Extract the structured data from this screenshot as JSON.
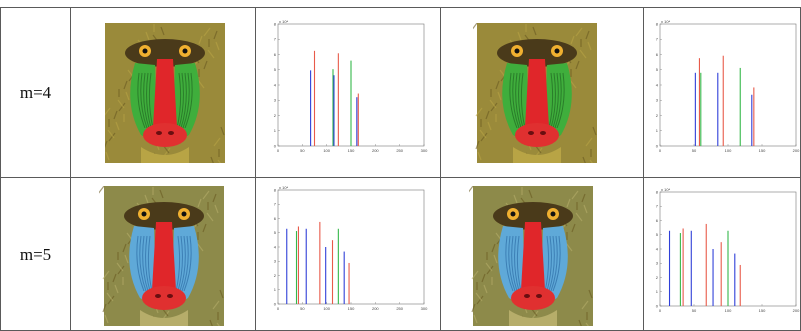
{
  "rows": [
    {
      "label": "m=4",
      "baboon_variant_a": "green",
      "baboon_variant_b": "green",
      "hist_a": {
        "xticks": [
          "0",
          "50",
          "100",
          "150",
          "200",
          "250",
          "300"
        ],
        "exponent": "x 10⁴",
        "bars": [
          {
            "x": 67,
            "h": 0.62,
            "color": "#2f3fd8"
          },
          {
            "x": 75,
            "h": 0.78,
            "color": "#e85a4a"
          },
          {
            "x": 113,
            "h": 0.63,
            "color": "#36b84a"
          },
          {
            "x": 115,
            "h": 0.58,
            "color": "#2f3fd8"
          },
          {
            "x": 124,
            "h": 0.76,
            "color": "#e85a4a"
          },
          {
            "x": 150,
            "h": 0.7,
            "color": "#36b84a"
          },
          {
            "x": 162,
            "h": 0.4,
            "color": "#2f3fd8"
          },
          {
            "x": 165,
            "h": 0.43,
            "color": "#e85a4a"
          }
        ]
      },
      "hist_b": {
        "xticks": [
          "0",
          "50",
          "100",
          "150",
          "200"
        ],
        "exponent": "x 10⁴",
        "bars": [
          {
            "x": 52,
            "h": 0.6,
            "color": "#2f3fd8"
          },
          {
            "x": 58,
            "h": 0.72,
            "color": "#e85a4a"
          },
          {
            "x": 60,
            "h": 0.6,
            "color": "#36b84a"
          },
          {
            "x": 85,
            "h": 0.6,
            "color": "#2f3fd8"
          },
          {
            "x": 93,
            "h": 0.74,
            "color": "#e85a4a"
          },
          {
            "x": 118,
            "h": 0.64,
            "color": "#36b84a"
          },
          {
            "x": 135,
            "h": 0.42,
            "color": "#2f3fd8"
          },
          {
            "x": 138,
            "h": 0.48,
            "color": "#e85a4a"
          }
        ]
      }
    },
    {
      "label": "m=5",
      "baboon_variant_a": "blue",
      "baboon_variant_b": "blue",
      "hist_a": {
        "xticks": [
          "0",
          "50",
          "100",
          "150",
          "200",
          "250",
          "300"
        ],
        "exponent": "x 10⁴",
        "bars": [
          {
            "x": 18,
            "h": 0.66,
            "color": "#2f3fd8"
          },
          {
            "x": 38,
            "h": 0.64,
            "color": "#36b84a"
          },
          {
            "x": 42,
            "h": 0.68,
            "color": "#e85a4a"
          },
          {
            "x": 58,
            "h": 0.66,
            "color": "#2f3fd8"
          },
          {
            "x": 86,
            "h": 0.72,
            "color": "#e85a4a"
          },
          {
            "x": 98,
            "h": 0.5,
            "color": "#2f3fd8"
          },
          {
            "x": 112,
            "h": 0.56,
            "color": "#e85a4a"
          },
          {
            "x": 124,
            "h": 0.66,
            "color": "#36b84a"
          },
          {
            "x": 136,
            "h": 0.46,
            "color": "#2f3fd8"
          },
          {
            "x": 146,
            "h": 0.36,
            "color": "#e85a4a"
          }
        ]
      },
      "hist_b": {
        "xticks": [
          "0",
          "50",
          "100",
          "150",
          "200"
        ],
        "exponent": "x 10⁴",
        "bars": [
          {
            "x": 14,
            "h": 0.66,
            "color": "#2f3fd8"
          },
          {
            "x": 30,
            "h": 0.64,
            "color": "#36b84a"
          },
          {
            "x": 34,
            "h": 0.68,
            "color": "#e85a4a"
          },
          {
            "x": 46,
            "h": 0.66,
            "color": "#2f3fd8"
          },
          {
            "x": 68,
            "h": 0.72,
            "color": "#e85a4a"
          },
          {
            "x": 78,
            "h": 0.5,
            "color": "#2f3fd8"
          },
          {
            "x": 90,
            "h": 0.56,
            "color": "#e85a4a"
          },
          {
            "x": 100,
            "h": 0.66,
            "color": "#36b84a"
          },
          {
            "x": 110,
            "h": 0.46,
            "color": "#2f3fd8"
          },
          {
            "x": 118,
            "h": 0.36,
            "color": "#e85a4a"
          }
        ]
      }
    }
  ]
}
